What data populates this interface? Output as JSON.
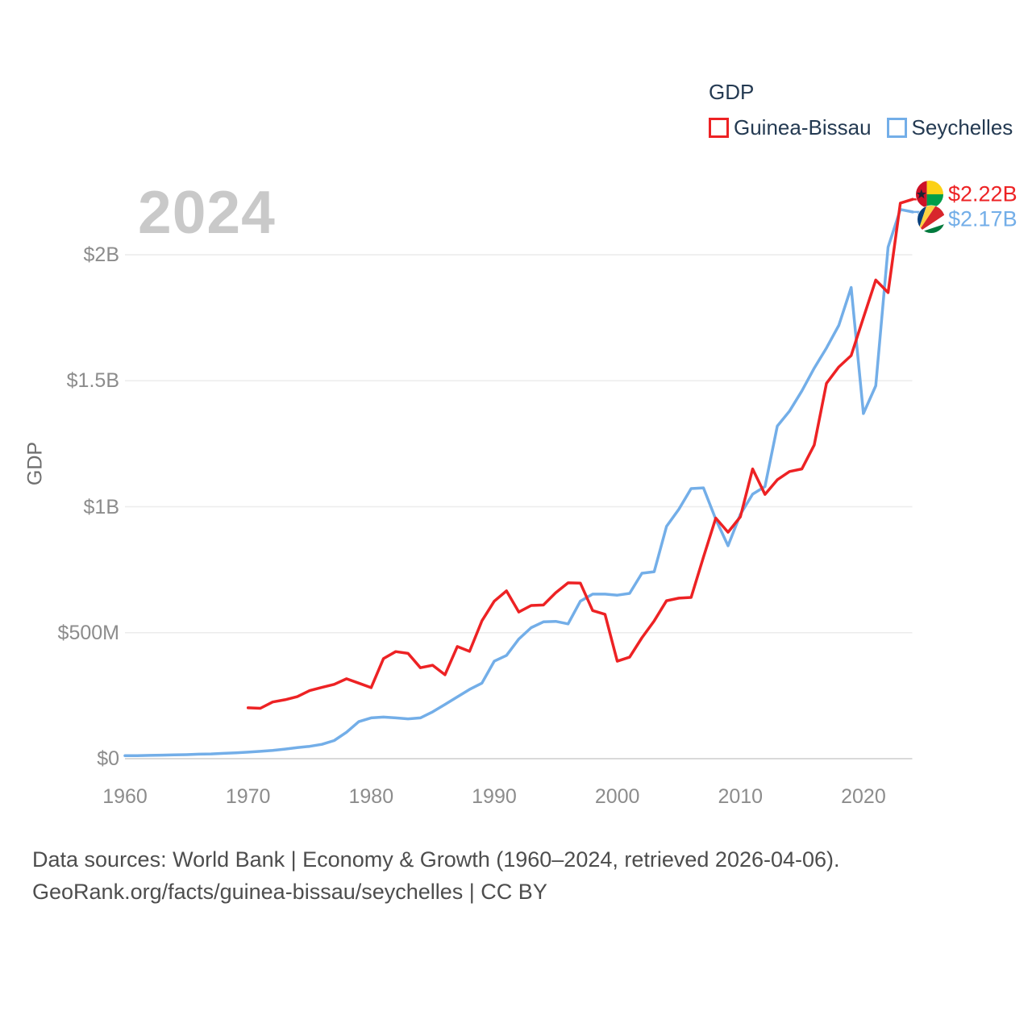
{
  "chart": {
    "watermark": "2024",
    "y_axis_title": "GDP"
  },
  "legend": {
    "title": "GDP",
    "items": [
      {
        "label": "Guinea-Bissau",
        "color": "#ed2224"
      },
      {
        "label": "Seychelles",
        "color": "#73aee8"
      }
    ]
  },
  "end_labels": [
    {
      "series": "Guinea-Bissau",
      "label": "$2.22B",
      "color": "#ed2224",
      "flag": "guinea-bissau-flag"
    },
    {
      "series": "Seychelles",
      "label": "$2.17B",
      "color": "#73aee8",
      "flag": "seychelles-flag"
    }
  ],
  "footer": {
    "line1": "Data sources: World Bank | Economy & Growth (1960–2024, retrieved 2026-04-06).",
    "line2": "GeoRank.org/facts/guinea-bissau/seychelles | CC BY"
  },
  "chart_data": {
    "type": "line",
    "title": "GDP",
    "xlabel": "",
    "ylabel": "GDP",
    "unit": "current US$ (values in billions)",
    "xlim": [
      1960,
      2024
    ],
    "ylim_billions": [
      0,
      2.25
    ],
    "grid": "horizontal",
    "legend_position": "top-right",
    "x_ticks": [
      {
        "value": 1960,
        "label": "1960"
      },
      {
        "value": 1970,
        "label": "1970"
      },
      {
        "value": 1980,
        "label": "1980"
      },
      {
        "value": 1990,
        "label": "1990"
      },
      {
        "value": 2000,
        "label": "2000"
      },
      {
        "value": 2010,
        "label": "2010"
      },
      {
        "value": 2020,
        "label": "2020"
      }
    ],
    "y_ticks": [
      {
        "value": 0,
        "label": "$0"
      },
      {
        "value": 0.5,
        "label": "$500M"
      },
      {
        "value": 1,
        "label": "$1B"
      },
      {
        "value": 1.5,
        "label": "$1.5B"
      },
      {
        "value": 2,
        "label": "$2B"
      }
    ],
    "series": [
      {
        "name": "Seychelles",
        "color": "#73aee8",
        "end_label": "$2.17B",
        "start_year": 1960,
        "values_billion_usd": [
          0.012,
          0.012,
          0.013,
          0.014,
          0.015,
          0.016,
          0.018,
          0.019,
          0.021,
          0.023,
          0.026,
          0.029,
          0.033,
          0.038,
          0.044,
          0.049,
          0.057,
          0.072,
          0.105,
          0.147,
          0.162,
          0.165,
          0.162,
          0.158,
          0.162,
          0.186,
          0.215,
          0.245,
          0.275,
          0.3,
          0.387,
          0.41,
          0.475,
          0.52,
          0.543,
          0.545,
          0.535,
          0.625,
          0.653,
          0.653,
          0.649,
          0.656,
          0.736,
          0.742,
          0.922,
          0.99,
          1.072,
          1.075,
          0.95,
          0.845,
          0.97,
          1.05,
          1.08,
          1.32,
          1.38,
          1.46,
          1.55,
          1.63,
          1.72,
          1.87,
          1.37,
          1.48,
          2.03,
          2.18,
          2.17
        ]
      },
      {
        "name": "Guinea-Bissau",
        "color": "#ed2224",
        "end_label": "$2.22B",
        "start_year": 1970,
        "values_billion_usd": [
          0.202,
          0.2,
          0.225,
          0.234,
          0.246,
          0.27,
          0.283,
          0.295,
          0.317,
          0.3,
          0.282,
          0.397,
          0.425,
          0.418,
          0.361,
          0.371,
          0.333,
          0.445,
          0.426,
          0.547,
          0.625,
          0.666,
          0.582,
          0.608,
          0.61,
          0.659,
          0.698,
          0.697,
          0.588,
          0.573,
          0.387,
          0.403,
          0.48,
          0.547,
          0.627,
          0.637,
          0.64,
          0.8,
          0.955,
          0.899,
          0.96,
          1.15,
          1.049,
          1.107,
          1.14,
          1.15,
          1.245,
          1.49,
          1.555,
          1.6,
          1.75,
          1.9,
          1.85,
          2.205,
          2.22
        ]
      }
    ]
  }
}
